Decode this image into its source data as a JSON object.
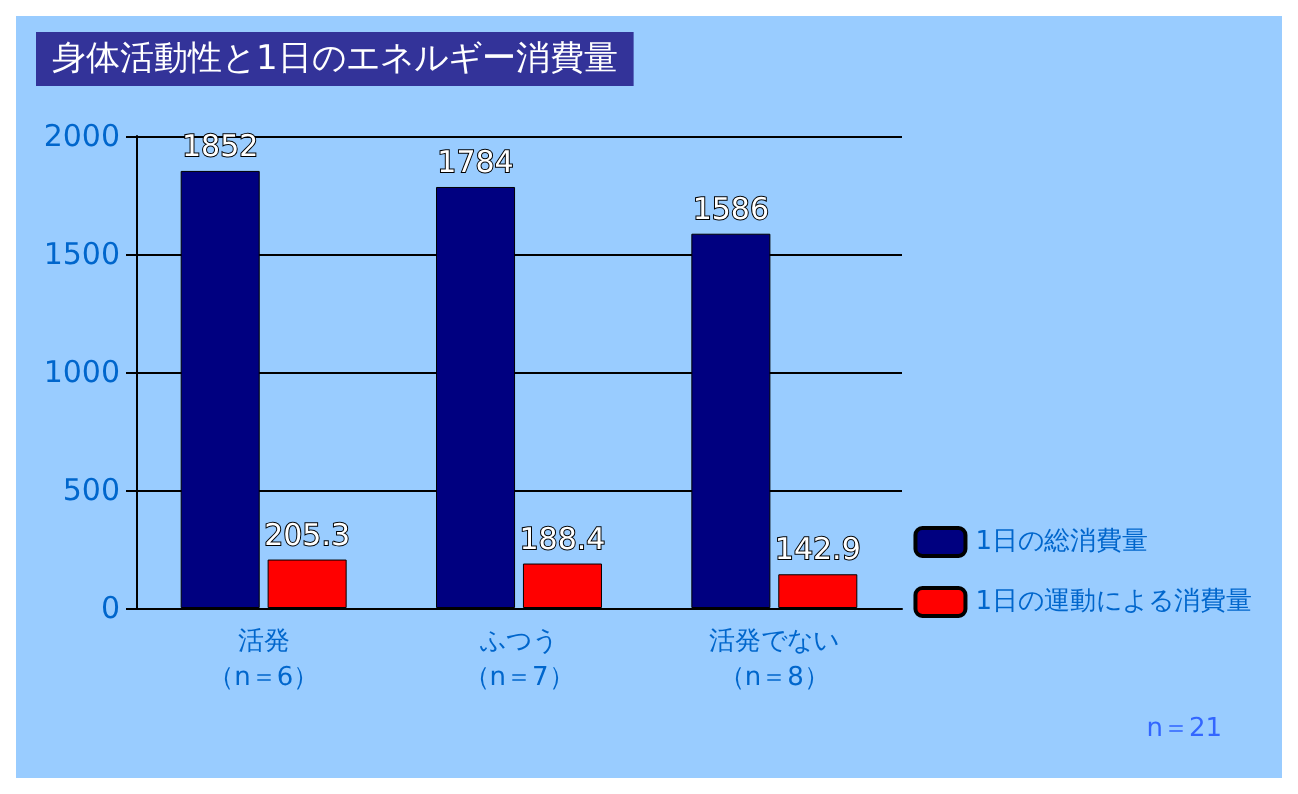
{
  "chart_data": {
    "type": "bar",
    "title": "身体活動性と1日のエネルギー消費量",
    "categories": [
      "活発（n＝6）",
      "ふつう（n＝7）",
      "活発でない（n＝8）"
    ],
    "series": [
      {
        "name": "1日の総消費量",
        "color": "#000080",
        "values": [
          1852,
          1784,
          1586
        ]
      },
      {
        "name": "1日の運動による消費量",
        "color": "#ff0000",
        "values": [
          205.3,
          188.4,
          142.9
        ]
      }
    ],
    "ylim": [
      0,
      2000
    ],
    "yticks": [
      0,
      500,
      1000,
      1500,
      2000
    ],
    "grid": "y",
    "legend": "right",
    "data_labels": true,
    "annotations": [
      "n＝21"
    ]
  }
}
